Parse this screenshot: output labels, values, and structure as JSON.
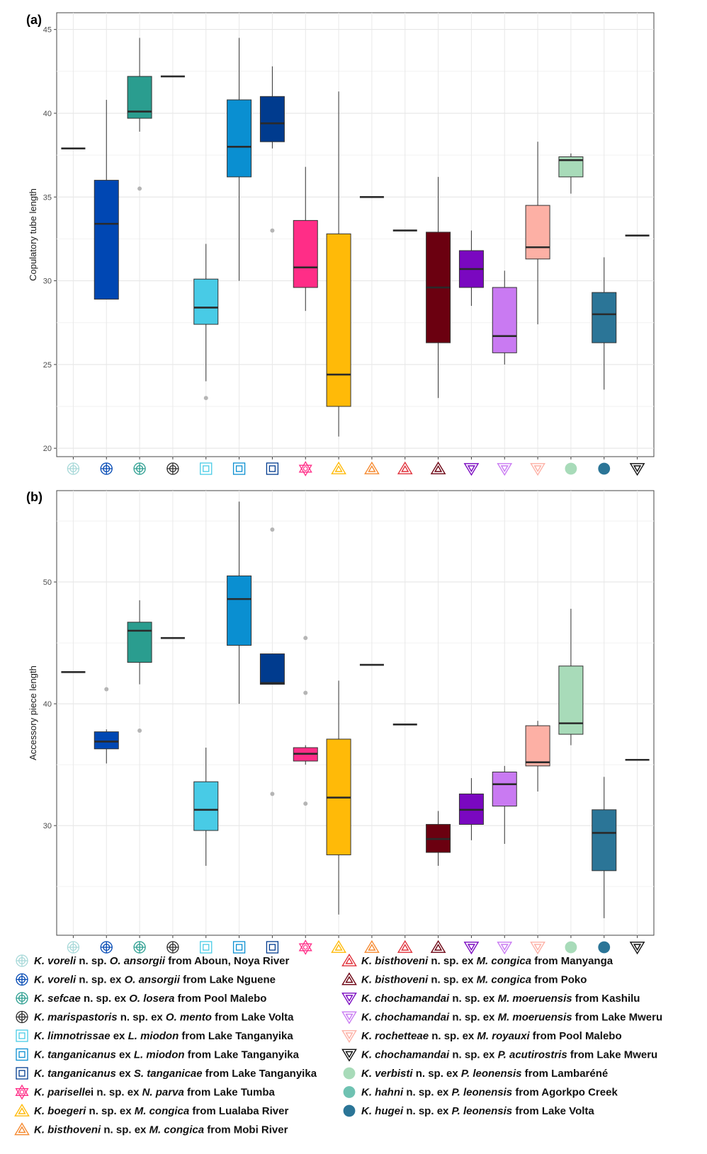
{
  "chart_data": [
    {
      "type": "box",
      "panel_label": "(a)",
      "ylabel": "Copulatory tube length",
      "ylim": [
        19.5,
        46
      ],
      "yticks": [
        20,
        25,
        30,
        35,
        40,
        45
      ],
      "grid": true,
      "boxes": [
        {
          "category": 1,
          "median": 37.9,
          "q1": 37.9,
          "q3": 37.9,
          "whisker_low": 37.9,
          "whisker_high": 37.9,
          "outliers": []
        },
        {
          "category": 2,
          "median": 33.4,
          "q1": 28.9,
          "q3": 36.0,
          "whisker_low": 28.9,
          "whisker_high": 40.8,
          "outliers": []
        },
        {
          "category": 3,
          "median": 40.1,
          "q1": 39.7,
          "q3": 42.2,
          "whisker_low": 38.9,
          "whisker_high": 44.5,
          "outliers": [
            35.5
          ]
        },
        {
          "category": 4,
          "median": 42.2,
          "q1": 42.2,
          "q3": 42.2,
          "whisker_low": 42.2,
          "whisker_high": 42.2,
          "outliers": []
        },
        {
          "category": 5,
          "median": 28.4,
          "q1": 27.4,
          "q3": 30.1,
          "whisker_low": 24.0,
          "whisker_high": 32.2,
          "outliers": [
            23.0
          ]
        },
        {
          "category": 6,
          "median": 38.0,
          "q1": 36.2,
          "q3": 40.8,
          "whisker_low": 30.0,
          "whisker_high": 44.5,
          "outliers": []
        },
        {
          "category": 7,
          "median": 39.4,
          "q1": 38.3,
          "q3": 41.0,
          "whisker_low": 37.9,
          "whisker_high": 42.8,
          "outliers": [
            33.0
          ]
        },
        {
          "category": 8,
          "median": 30.8,
          "q1": 29.6,
          "q3": 33.6,
          "whisker_low": 28.2,
          "whisker_high": 36.8,
          "outliers": []
        },
        {
          "category": 9,
          "median": 24.4,
          "q1": 22.5,
          "q3": 32.8,
          "whisker_low": 20.7,
          "whisker_high": 41.3,
          "outliers": []
        },
        {
          "category": 10,
          "median": 35.0,
          "q1": 35.0,
          "q3": 35.0,
          "whisker_low": 35.0,
          "whisker_high": 35.0,
          "outliers": []
        },
        {
          "category": 11,
          "median": 33.0,
          "q1": 33.0,
          "q3": 33.0,
          "whisker_low": 33.0,
          "whisker_high": 33.0,
          "outliers": []
        },
        {
          "category": 12,
          "median": 29.6,
          "q1": 26.3,
          "q3": 32.9,
          "whisker_low": 23.0,
          "whisker_high": 36.2,
          "outliers": []
        },
        {
          "category": 13,
          "median": 30.7,
          "q1": 29.6,
          "q3": 31.8,
          "whisker_low": 28.5,
          "whisker_high": 33.0,
          "outliers": []
        },
        {
          "category": 14,
          "median": 26.7,
          "q1": 25.7,
          "q3": 29.6,
          "whisker_low": 25.0,
          "whisker_high": 30.6,
          "outliers": []
        },
        {
          "category": 15,
          "median": 32.0,
          "q1": 31.3,
          "q3": 34.5,
          "whisker_low": 27.4,
          "whisker_high": 38.3,
          "outliers": []
        },
        {
          "category": 16,
          "median": 37.2,
          "q1": 36.2,
          "q3": 37.4,
          "whisker_low": 35.2,
          "whisker_high": 37.6,
          "outliers": []
        },
        {
          "category": 17,
          "median": 28.0,
          "q1": 26.3,
          "q3": 29.3,
          "whisker_low": 23.5,
          "whisker_high": 31.4,
          "outliers": []
        },
        {
          "category": 18,
          "median": 32.7,
          "q1": 32.7,
          "q3": 32.7,
          "whisker_low": 32.7,
          "whisker_high": 32.7,
          "outliers": []
        }
      ]
    },
    {
      "type": "box",
      "panel_label": "(b)",
      "ylabel": "Accessory piece length",
      "ylim": [
        21.0,
        57.5
      ],
      "yticks": [
        30,
        40,
        50
      ],
      "minor_grid": [
        25,
        35,
        45,
        55
      ],
      "grid": true,
      "boxes": [
        {
          "category": 1,
          "median": 42.6,
          "q1": 42.6,
          "q3": 42.6,
          "whisker_low": 42.6,
          "whisker_high": 42.6,
          "outliers": []
        },
        {
          "category": 2,
          "median": 36.9,
          "q1": 36.3,
          "q3": 37.7,
          "whisker_low": 35.1,
          "whisker_high": 37.9,
          "outliers": [
            41.2
          ]
        },
        {
          "category": 3,
          "median": 46.0,
          "q1": 43.4,
          "q3": 46.7,
          "whisker_low": 41.6,
          "whisker_high": 48.5,
          "outliers": [
            37.8
          ]
        },
        {
          "category": 4,
          "median": 45.4,
          "q1": 45.4,
          "q3": 45.4,
          "whisker_low": 45.4,
          "whisker_high": 45.4,
          "outliers": []
        },
        {
          "category": 5,
          "median": 31.3,
          "q1": 29.6,
          "q3": 33.6,
          "whisker_low": 26.7,
          "whisker_high": 36.4,
          "outliers": []
        },
        {
          "category": 6,
          "median": 48.6,
          "q1": 44.8,
          "q3": 50.5,
          "whisker_low": 40.0,
          "whisker_high": 56.6,
          "outliers": []
        },
        {
          "category": 7,
          "median": 41.7,
          "q1": 41.6,
          "q3": 44.1,
          "whisker_low": 41.6,
          "whisker_high": 44.1,
          "outliers": [
            54.3,
            32.6
          ]
        },
        {
          "category": 8,
          "median": 35.9,
          "q1": 35.3,
          "q3": 36.4,
          "whisker_low": 35.0,
          "whisker_high": 36.6,
          "outliers": [
            45.4,
            40.9,
            31.8
          ]
        },
        {
          "category": 9,
          "median": 32.3,
          "q1": 27.6,
          "q3": 37.1,
          "whisker_low": 22.7,
          "whisker_high": 41.9,
          "outliers": []
        },
        {
          "category": 10,
          "median": 43.2,
          "q1": 43.2,
          "q3": 43.2,
          "whisker_low": 43.2,
          "whisker_high": 43.2,
          "outliers": []
        },
        {
          "category": 11,
          "median": 38.3,
          "q1": 38.3,
          "q3": 38.3,
          "whisker_low": 38.3,
          "whisker_high": 38.3,
          "outliers": []
        },
        {
          "category": 12,
          "median": 28.9,
          "q1": 27.8,
          "q3": 30.1,
          "whisker_low": 26.7,
          "whisker_high": 31.2,
          "outliers": []
        },
        {
          "category": 13,
          "median": 31.3,
          "q1": 30.1,
          "q3": 32.6,
          "whisker_low": 28.8,
          "whisker_high": 33.9,
          "outliers": []
        },
        {
          "category": 14,
          "median": 33.4,
          "q1": 31.6,
          "q3": 34.4,
          "whisker_low": 28.5,
          "whisker_high": 34.9,
          "outliers": []
        },
        {
          "category": 15,
          "median": 35.2,
          "q1": 34.9,
          "q3": 38.2,
          "whisker_low": 32.8,
          "whisker_high": 38.6,
          "outliers": []
        },
        {
          "category": 16,
          "median": 38.4,
          "q1": 37.5,
          "q3": 43.1,
          "whisker_low": 36.6,
          "whisker_high": 47.8,
          "outliers": []
        },
        {
          "category": 17,
          "median": 29.4,
          "q1": 26.3,
          "q3": 31.3,
          "whisker_low": 22.4,
          "whisker_high": 34.0,
          "outliers": []
        },
        {
          "category": 18,
          "median": 35.4,
          "q1": 35.4,
          "q3": 35.4,
          "whisker_low": 35.4,
          "whisker_high": 35.4,
          "outliers": []
        }
      ]
    }
  ],
  "colors": [
    "#a6d8d8",
    "#0047b3",
    "#2a9d8f",
    "#2b2b2b",
    "#48cbe6",
    "#0a8fd1",
    "#003b8e",
    "#ff2d87",
    "#ffba08",
    "#f5892f",
    "#e0303a",
    "#6b0010",
    "#7a08c0",
    "#c97af2",
    "#fdb0a5",
    "#a8dbb9",
    "#2b7597",
    "#0d0d0d"
  ],
  "legend": [
    {
      "sp": "K. voreli",
      "nsp": " n. sp. ",
      "prep": "",
      "host": "O. ansorgii",
      "loc": " from Aboun, Noya River",
      "marker": "circle-cross",
      "color": "#a6d8d8"
    },
    {
      "sp": "K. voreli",
      "nsp": " n. sp. ",
      "prep": "ex ",
      "host": "O. ansorgii",
      "loc": " from Lake Nguene",
      "marker": "circle-cross",
      "color": "#0047b3"
    },
    {
      "sp": "K. sefcae",
      "nsp": " n. sp. ",
      "prep": "ex ",
      "host": "O. losera",
      "loc": " from Pool Malebo",
      "marker": "circle-cross",
      "color": "#2a9d8f"
    },
    {
      "sp": "K. marispastoris",
      "nsp": " n. sp. ",
      "prep": "ex ",
      "host": "O. mento",
      "loc": " from Lake Volta",
      "marker": "circle-cross",
      "color": "#2b2b2b"
    },
    {
      "sp": "K. limnotrissae",
      "nsp": " ",
      "prep": "ex ",
      "host": "L. miodon",
      "loc": " from Lake Tanganyika",
      "marker": "square",
      "color": "#48cbe6"
    },
    {
      "sp": "K. tanganicanus",
      "nsp": " ",
      "prep": "ex ",
      "host": "L. miodon",
      "loc": " from Lake Tanganyika",
      "marker": "square",
      "color": "#0a8fd1"
    },
    {
      "sp": "K. tanganicanus",
      "nsp": " ",
      "prep": "ex ",
      "host": "S. tanganicae",
      "loc": " from Lake Tanganyika",
      "marker": "square",
      "color": "#003b8e"
    },
    {
      "sp": "K. pariselle",
      "nsp": "i n. sp. ",
      "prep": "ex ",
      "host": "N. parva",
      "loc": " from Lake Tumba",
      "marker": "star",
      "color": "#ff2d87"
    },
    {
      "sp": "K. boegeri",
      "nsp": " n. sp. ",
      "prep": "ex ",
      "host": "M. congica",
      "loc": " from Lualaba River",
      "marker": "triangle-up",
      "color": "#ffba08"
    },
    {
      "sp": "K. bisthoveni",
      "nsp": " n. sp. ",
      "prep": "ex ",
      "host": "M. congica",
      "loc": " from Mobi River",
      "marker": "triangle-up",
      "color": "#f5892f"
    },
    {
      "sp": "K. bisthoveni",
      "nsp": " n. sp. ",
      "prep": "ex ",
      "host": "M. congica",
      "loc": " from Manyanga",
      "marker": "triangle-up",
      "color": "#e0303a"
    },
    {
      "sp": "K. bisthoveni",
      "nsp": " n. sp. ",
      "prep": "ex ",
      "host": "M. congica",
      "loc": " from Poko",
      "marker": "triangle-up",
      "color": "#6b0010"
    },
    {
      "sp": "K. chochamandai",
      "nsp": " n. sp. ",
      "prep": "ex ",
      "host": "M. moeruensis",
      "loc": " from Kashilu",
      "marker": "triangle-down",
      "color": "#7a08c0"
    },
    {
      "sp": "K. chochamandai",
      "nsp": " n. sp. ",
      "prep": "ex ",
      "host": "M. moeruensis",
      "loc": " from Lake Mweru",
      "marker": "triangle-down",
      "color": "#c97af2"
    },
    {
      "sp": "K. rochetteae",
      "nsp": " n. sp. ",
      "prep": "ex ",
      "host": "M. royauxi",
      "loc": " from Pool Malebo",
      "marker": "triangle-down",
      "color": "#fdb0a5"
    },
    {
      "sp": "K. chochamandai",
      "nsp": " n. sp. ",
      "prep": "ex ",
      "host": "P. acutirostris",
      "loc": " from Lake Mweru",
      "marker": "triangle-down",
      "color": "#0d0d0d"
    },
    {
      "sp": "K. verbisti",
      "nsp": " n. sp. ",
      "prep": "ex ",
      "host": "P. leonensis",
      "loc": " from Lambaréné",
      "marker": "dot",
      "color": "#a8dbb9"
    },
    {
      "sp": "K. hahni",
      "nsp": " n. sp. ",
      "prep": "ex ",
      "host": "P. leonensis",
      "loc": " from Agorkpo Creek",
      "marker": "dot",
      "color": "#6fc2b2"
    },
    {
      "sp": "K. hugei",
      "nsp": " n. sp. ",
      "prep": "ex ",
      "host": "P. leonensis",
      "loc": " from Lake Volta",
      "marker": "dot",
      "color": "#2b7597"
    }
  ]
}
